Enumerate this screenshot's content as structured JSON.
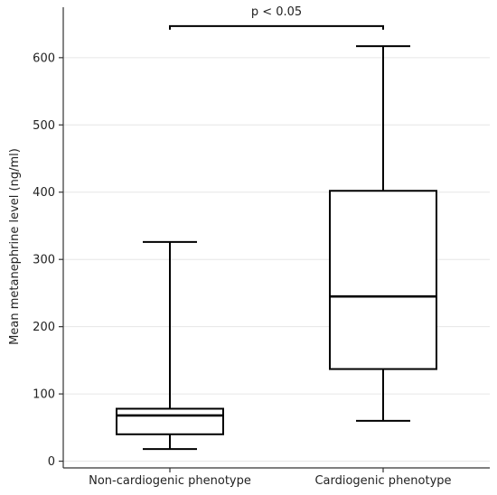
{
  "chart_data": {
    "type": "box",
    "title": "",
    "xlabel": "",
    "ylabel": "Mean metanephrine level (ng/ml)",
    "ylim": [
      -10,
      675
    ],
    "yticks": [
      0,
      100,
      200,
      300,
      400,
      500,
      600
    ],
    "grid": true,
    "categories": [
      "Non-cardiogenic phenotype",
      "Cardiogenic phenotype"
    ],
    "boxes": [
      {
        "category": "Non-cardiogenic phenotype",
        "whisker_low": 18,
        "q1": 40,
        "median": 68,
        "q3": 78,
        "whisker_high": 326
      },
      {
        "category": "Cardiogenic phenotype",
        "whisker_low": 60,
        "q1": 137,
        "median": 245,
        "q3": 402,
        "whisker_high": 617
      }
    ],
    "annotation": {
      "text": "p < 0.05",
      "from": "Non-cardiogenic phenotype",
      "to": "Cardiogenic phenotype",
      "y": 647
    }
  }
}
